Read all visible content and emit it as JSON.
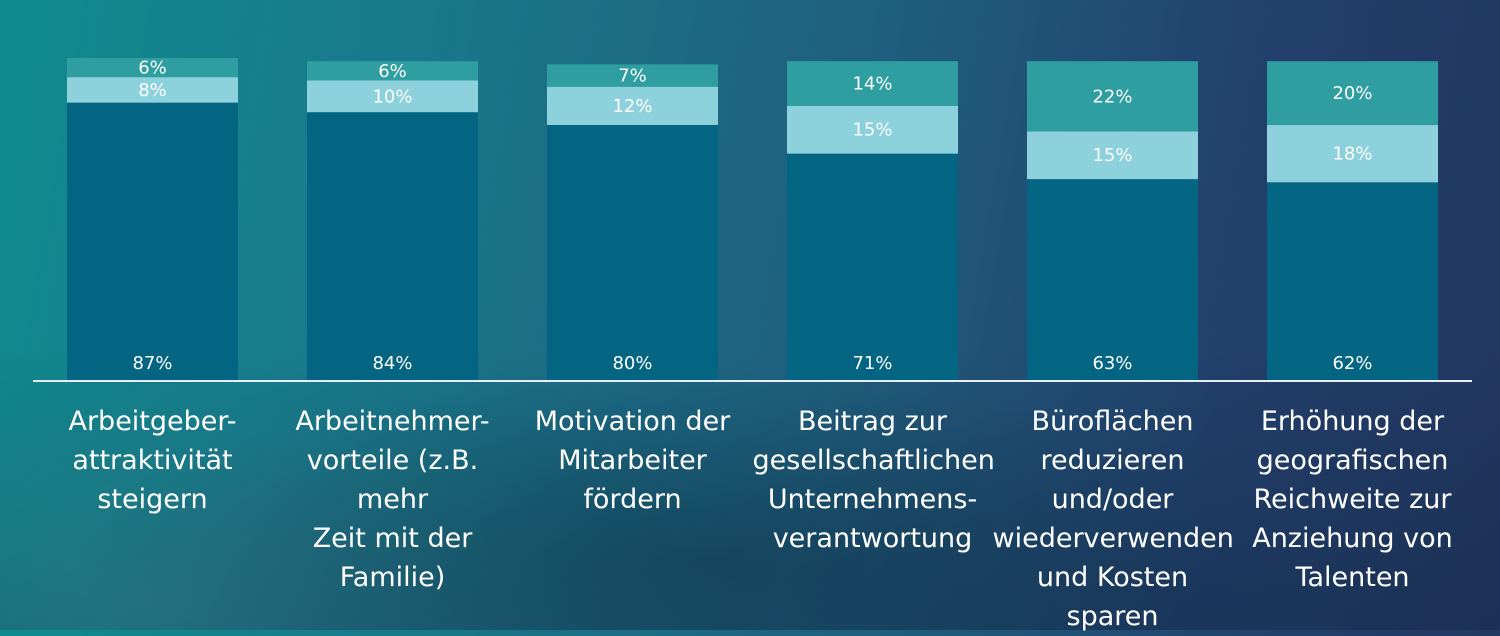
{
  "chart_data": {
    "type": "bar",
    "stacked": true,
    "categories": [
      "Arbeitgeber-\nattraktivität\nsteigern",
      "Arbeitnehmer-\nvorteile (z.B. mehr\nZeit mit der\nFamilie)",
      "Motivation der\nMitarbeiter\nfördern",
      "Beitrag zur\ngesellschaftlichen\nUnternehmens-\nverantwortung",
      "Büroflächen\nreduzieren\nund/oder\nwiederverwenden\nund Kosten\nsparen",
      "Erhöhung der\ngeografischen\nReichweite zur\nAnziehung von\nTalenten"
    ],
    "series": [
      {
        "values": [
          87,
          84,
          80,
          71,
          63,
          62
        ],
        "labels": [
          "87%",
          "84%",
          "80%",
          "71%",
          "63%",
          "62%"
        ],
        "color": "#036582"
      },
      {
        "values": [
          8,
          10,
          12,
          15,
          15,
          18
        ],
        "labels": [
          "8%",
          "10%",
          "12%",
          "15%",
          "15%",
          "18%"
        ],
        "color": "#8dd1dc"
      },
      {
        "values": [
          6,
          6,
          7,
          14,
          22,
          20
        ],
        "labels": [
          "6%",
          "6%",
          "7%",
          "14%",
          "22%",
          "20%"
        ],
        "color": "#2f9ea0"
      }
    ],
    "ylim": [
      0,
      100
    ],
    "grid": false,
    "legend": "none",
    "title": "",
    "xlabel": "",
    "ylabel": ""
  },
  "colors": {
    "baseline": "#e6eef2",
    "label_text": "#ffffff"
  }
}
